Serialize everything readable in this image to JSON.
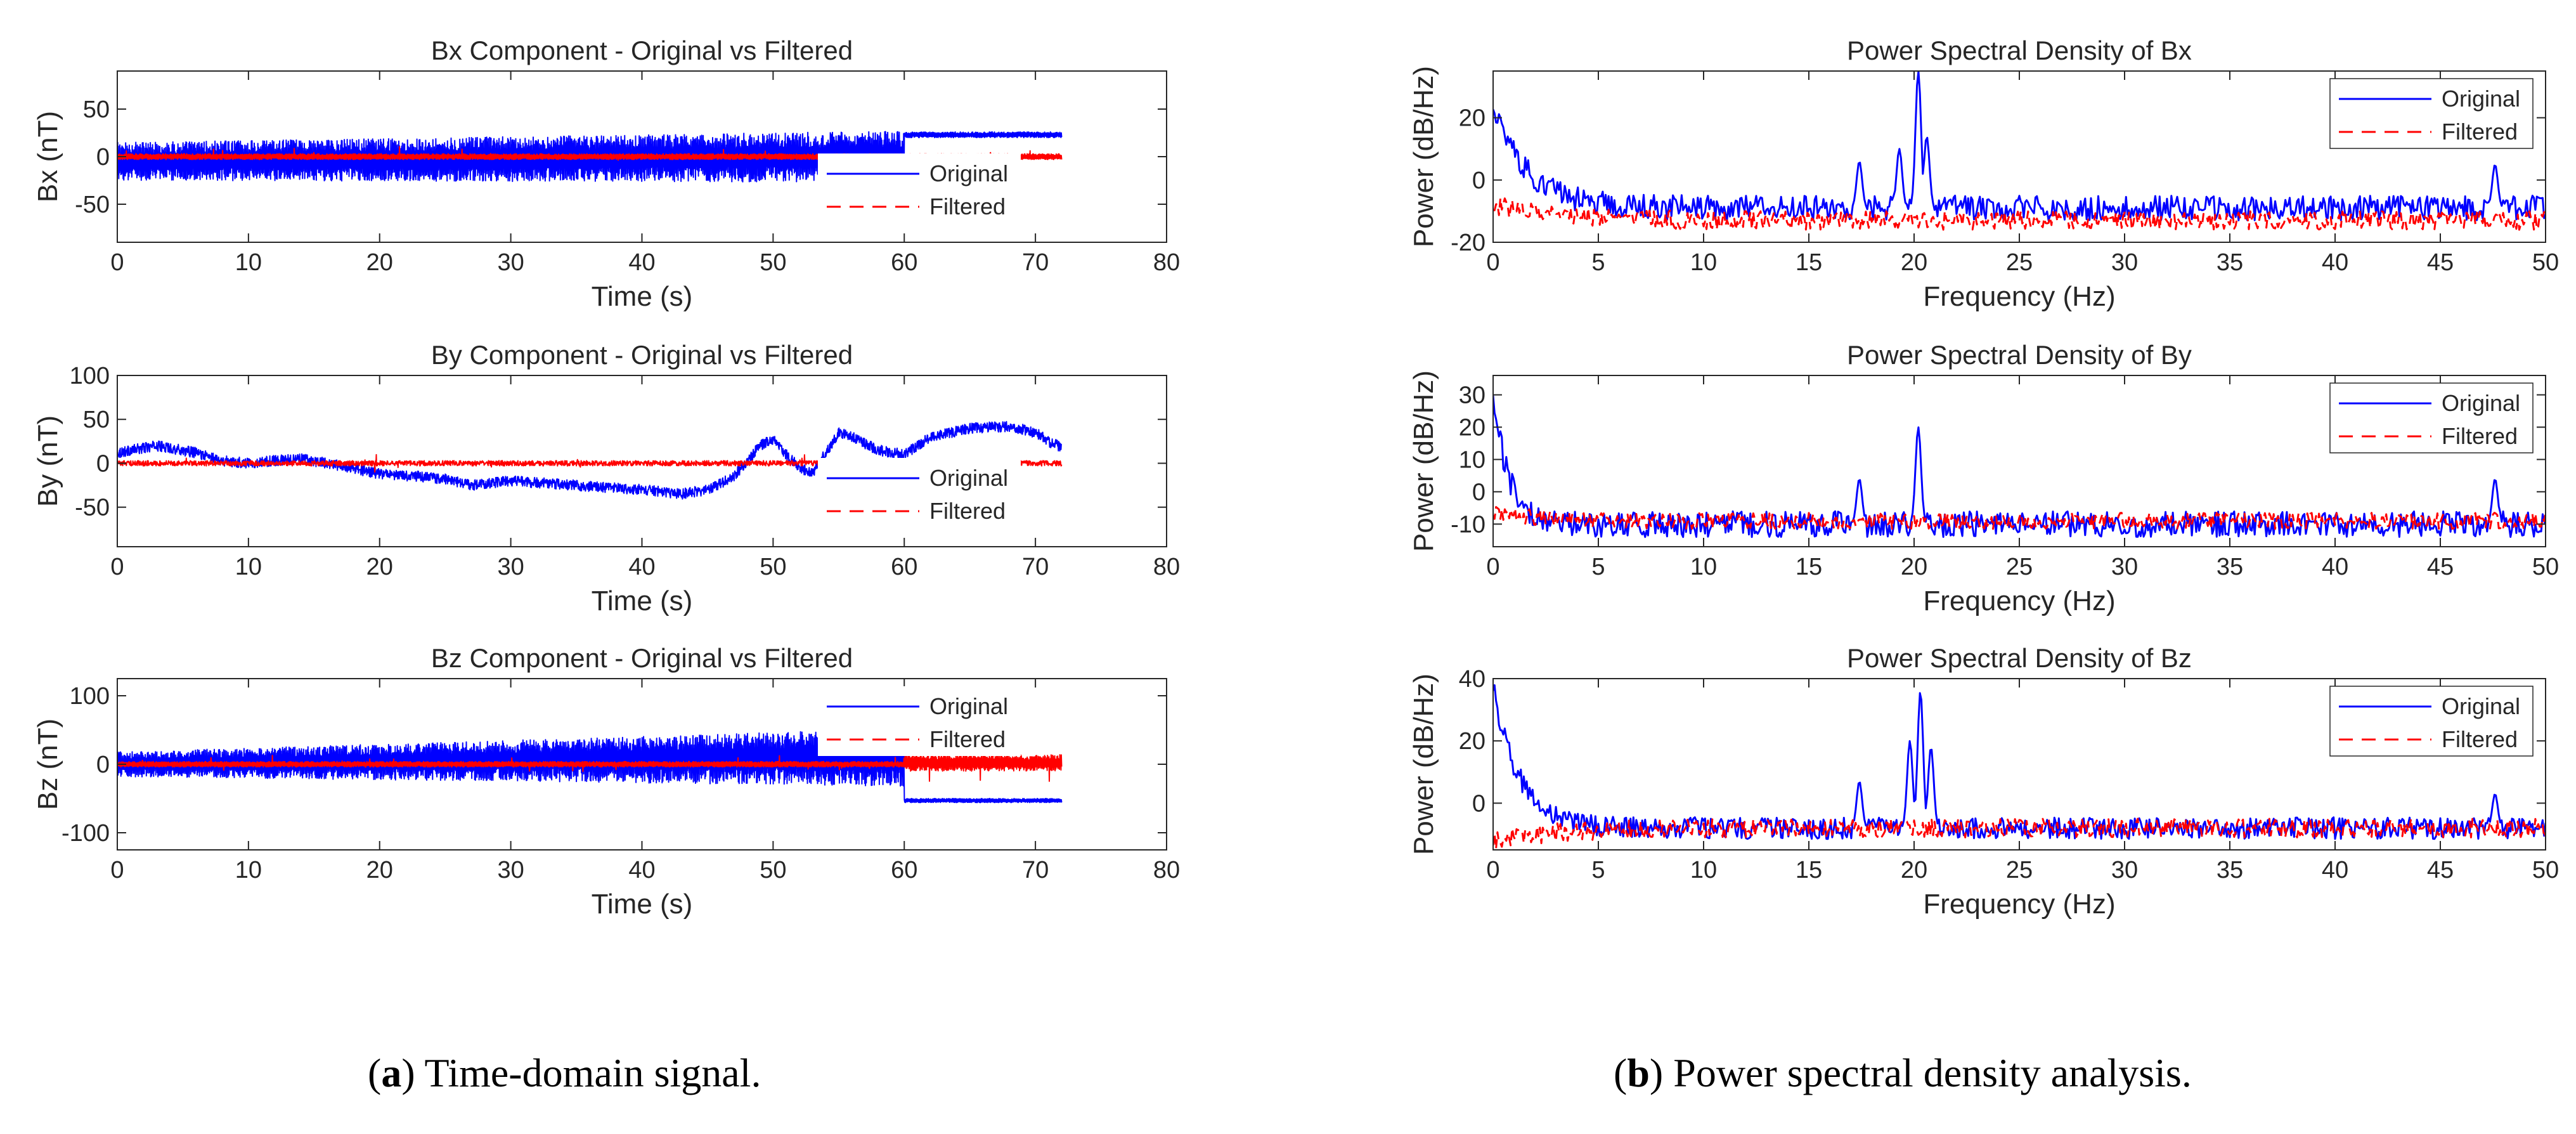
{
  "colors": {
    "original": "#0000FF",
    "filtered": "#FF0000",
    "axis": "#262626"
  },
  "captions": [
    {
      "label": "a",
      "text": "Time-domain signal."
    },
    {
      "label": "b",
      "text": "Power spectral density analysis."
    }
  ],
  "chart_data": [
    {
      "type": "line",
      "kind": "time",
      "title": "Bx Component - Original vs Filtered",
      "xlabel": "Time (s)",
      "ylabel": "Bx (nT)",
      "xlim": [
        0,
        80
      ],
      "ylim": [
        -90,
        90
      ],
      "xticks": [
        0,
        10,
        20,
        30,
        40,
        50,
        60,
        70,
        80
      ],
      "yticks": [
        -50,
        0,
        50
      ],
      "legend": [
        "Original",
        "Filtered"
      ],
      "legend_position": "right",
      "series": [
        {
          "name": "Original",
          "style": "solid",
          "t_end": 72,
          "segments": [
            {
              "t": [
                0,
                60
              ],
              "level": [
                -5,
                0
              ],
              "amplitude": [
                20,
                27
              ]
            },
            {
              "t": [
                60,
                72
              ],
              "level": [
                23,
                23
              ],
              "amplitude": [
                3,
                3
              ]
            }
          ]
        },
        {
          "name": "Filtered",
          "style": "dashed",
          "t_end": 72,
          "segments": [
            {
              "t": [
                0,
                72
              ],
              "level": [
                0,
                0
              ],
              "amplitude": [
                3,
                3
              ]
            }
          ]
        }
      ]
    },
    {
      "type": "line",
      "kind": "time",
      "title": "By Component - Original vs Filtered",
      "xlabel": "Time (s)",
      "ylabel": "By (nT)",
      "xlim": [
        0,
        80
      ],
      "ylim": [
        -95,
        100
      ],
      "xticks": [
        0,
        10,
        20,
        30,
        40,
        50,
        60,
        70,
        80
      ],
      "yticks": [
        -50,
        0,
        50,
        100
      ],
      "legend": [
        "Original",
        "Filtered"
      ],
      "legend_position": "right",
      "series": [
        {
          "name": "Original",
          "style": "solid",
          "t_end": 72,
          "trend": {
            "t": [
              0,
              3,
              6,
              8,
              10,
              12,
              14,
              16,
              20,
              23,
              25,
              27,
              30,
              35,
              40,
              43,
              45,
              47,
              49,
              50,
              51,
              52,
              53,
              55,
              56,
              58,
              60,
              62,
              65,
              68,
              70,
              71,
              72
            ],
            "v": [
              12,
              20,
              12,
              3,
              0,
              3,
              5,
              0,
              -12,
              -15,
              -18,
              -25,
              -20,
              -25,
              -30,
              -35,
              -30,
              -15,
              20,
              28,
              10,
              -5,
              -12,
              35,
              30,
              15,
              10,
              30,
              40,
              42,
              35,
              25,
              18
            ]
          },
          "noise": 6
        },
        {
          "name": "Filtered",
          "style": "dashed",
          "t_end": 72,
          "level": 0,
          "noise": 3
        }
      ]
    },
    {
      "type": "line",
      "kind": "time",
      "title": "Bz Component - Original vs Filtered",
      "xlabel": "Time (s)",
      "ylabel": "Bz (nT)",
      "xlim": [
        0,
        80
      ],
      "ylim": [
        -125,
        125
      ],
      "xticks": [
        0,
        10,
        20,
        30,
        40,
        50,
        60,
        70,
        80
      ],
      "yticks": [
        -100,
        0,
        100
      ],
      "legend": [
        "Original",
        "Filtered"
      ],
      "legend_position": "top-right",
      "series": [
        {
          "name": "Original",
          "style": "solid",
          "t_end": 72,
          "segments": [
            {
              "t": [
                0,
                60
              ],
              "level": [
                0,
                10
              ],
              "amplitude": [
                18,
                42
              ]
            },
            {
              "t": [
                60,
                72
              ],
              "level": [
                -53,
                -53
              ],
              "amplitude": [
                3,
                3
              ]
            }
          ]
        },
        {
          "name": "Filtered",
          "style": "dashed",
          "t_end": 72,
          "segments": [
            {
              "t": [
                0,
                60
              ],
              "level": [
                0,
                0
              ],
              "amplitude": [
                4,
                4
              ]
            },
            {
              "t": [
                60,
                72
              ],
              "level": [
                2,
                2
              ],
              "amplitude": [
                12,
                12
              ]
            }
          ]
        }
      ]
    },
    {
      "type": "line",
      "kind": "psd",
      "title": "Power Spectral Density of Bx",
      "xlabel": "Frequency (Hz)",
      "ylabel": "Power (dB/Hz)",
      "xlim": [
        0,
        50
      ],
      "ylim": [
        -20,
        35
      ],
      "xticks": [
        0,
        5,
        10,
        15,
        20,
        25,
        30,
        35,
        40,
        45,
        50
      ],
      "yticks": [
        -20,
        0,
        20
      ],
      "legend": [
        "Original",
        "Filtered"
      ],
      "legend_position": "top-right",
      "series": [
        {
          "name": "Original",
          "style": "solid",
          "base": -9,
          "start": 25,
          "decay": 1.6,
          "noise": 4,
          "peaks": [
            {
              "f": 17.4,
              "v": 6
            },
            {
              "f": 19.3,
              "v": 10
            },
            {
              "f": 20.2,
              "v": 35
            },
            {
              "f": 20.6,
              "v": 14
            },
            {
              "f": 47.6,
              "v": 5
            }
          ]
        },
        {
          "name": "Filtered",
          "style": "dashed",
          "base": -13,
          "start": -8,
          "decay": 3,
          "noise": 3,
          "peaks": []
        }
      ]
    },
    {
      "type": "line",
      "kind": "psd",
      "title": "Power Spectral Density of By",
      "xlabel": "Frequency (Hz)",
      "ylabel": "Power (dB/Hz)",
      "xlim": [
        0,
        50
      ],
      "ylim": [
        -17,
        36
      ],
      "xticks": [
        0,
        5,
        10,
        15,
        20,
        25,
        30,
        35,
        40,
        45,
        50
      ],
      "yticks": [
        -10,
        0,
        10,
        20,
        30
      ],
      "legend": [
        "Original",
        "Filtered"
      ],
      "legend_position": "top-right",
      "series": [
        {
          "name": "Original",
          "style": "solid",
          "base": -10,
          "start": 32,
          "decay": 0.7,
          "noise": 4,
          "peaks": [
            {
              "f": 17.4,
              "v": 4
            },
            {
              "f": 20.2,
              "v": 20
            },
            {
              "f": 47.6,
              "v": 4
            }
          ]
        },
        {
          "name": "Filtered",
          "style": "dashed",
          "base": -9,
          "start": -6,
          "decay": 2,
          "noise": 2.5,
          "peaks": []
        }
      ]
    },
    {
      "type": "line",
      "kind": "psd",
      "title": "Power Spectral Density of Bz",
      "xlabel": "Frequency (Hz)",
      "ylabel": "Power (dB/Hz)",
      "xlim": [
        0,
        50
      ],
      "ylim": [
        -15,
        40
      ],
      "xticks": [
        0,
        5,
        10,
        15,
        20,
        25,
        30,
        35,
        40,
        45,
        50
      ],
      "yticks": [
        0,
        20,
        40
      ],
      "legend": [
        "Original",
        "Filtered"
      ],
      "legend_position": "top-right",
      "series": [
        {
          "name": "Original",
          "style": "solid",
          "base": -8,
          "start": 38,
          "decay": 1.2,
          "noise": 3.5,
          "peaks": [
            {
              "f": 17.4,
              "v": 7
            },
            {
              "f": 19.8,
              "v": 20
            },
            {
              "f": 20.3,
              "v": 36
            },
            {
              "f": 20.8,
              "v": 18
            },
            {
              "f": 47.6,
              "v": 3
            }
          ]
        },
        {
          "name": "Filtered",
          "style": "dashed",
          "base": -8,
          "start": -12,
          "decay": 3,
          "noise": 3,
          "peaks": []
        }
      ]
    }
  ]
}
